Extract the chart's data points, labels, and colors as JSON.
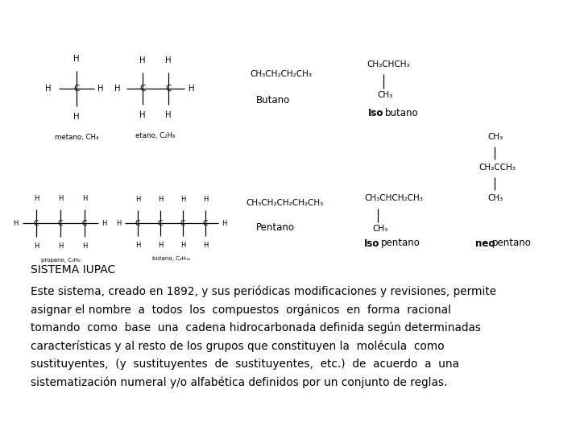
{
  "background_color": "#ffffff",
  "title_text": "SISTEMA IUPAC",
  "title_fontsize": 10.0,
  "body_text_lines": [
    "Este sistema, creado en 1892, y sus periódicas modificaciones y revisiones, permite",
    "asignar el nombre  a  todos  los  compuestos  orgánicos  en  forma  racional",
    "tomando  como  base  una  cadena hidrocarbonada definida según determinadas",
    "características y al resto de los grupos que constituyen la  molécula  como",
    "sustituyentes,  (y  sustituyentes  de  sustituyentes,  etc.)  de  acuerdo  a  una",
    "sistematización numeral y/o alfabética definidos por un conjunto de reglas."
  ],
  "body_fontsize": 9.8,
  "text_color": "#000000"
}
